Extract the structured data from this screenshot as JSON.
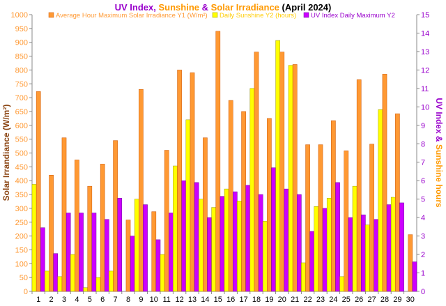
{
  "chart_data": {
    "type": "bar",
    "title_parts": [
      {
        "text": "UV Index",
        "color": "#9900cc"
      },
      {
        "text": ", ",
        "color": "#9900cc"
      },
      {
        "text": "Sunshine",
        "color": "#ff9900"
      },
      {
        "text": " & ",
        "color": "#9900cc"
      },
      {
        "text": "Solar Irradiance",
        "color": "#ff9900"
      },
      {
        "text": " (April 2024)",
        "color": "#000000"
      }
    ],
    "ylabel_left": "Solar Irrandiance (W/m²)",
    "ylabel_right_parts": [
      {
        "text": "UV Index",
        "color": "#9900cc"
      },
      {
        "text": " & ",
        "color": "#9900cc"
      },
      {
        "text": "Sunshine hours",
        "color": "#ff9900"
      }
    ],
    "ylim_left": [
      0,
      1000
    ],
    "ylim_right": [
      0,
      15
    ],
    "yticks_left": [
      "0",
      "50",
      "100",
      "150",
      "200",
      "250",
      "300",
      "350",
      "400",
      "450",
      "500",
      "550",
      "600",
      "650",
      "700",
      "750",
      "800",
      "850",
      "900",
      "950",
      "1000"
    ],
    "yticks_right": [
      "0",
      "1",
      "2",
      "3",
      "4",
      "5",
      "6",
      "7",
      "8",
      "9",
      "10",
      "11",
      "12",
      "13",
      "14",
      "15"
    ],
    "categories": [
      "1",
      "2",
      "3",
      "4",
      "5",
      "6",
      "7",
      "8",
      "9",
      "10",
      "11",
      "12",
      "13",
      "14",
      "15",
      "16",
      "17",
      "18",
      "19",
      "20",
      "21",
      "22",
      "23",
      "24",
      "25",
      "26",
      "27",
      "28",
      "29",
      "30"
    ],
    "legend_position": "top",
    "grid": false,
    "series": [
      {
        "name": "Average Hour Maximum Solar Irradiance Y1 (W/m²)",
        "axis": "left",
        "color": "#ff9933",
        "edge": "#cc5500",
        "values": [
          722,
          420,
          555,
          475,
          380,
          460,
          545,
          258,
          730,
          288,
          510,
          800,
          790,
          555,
          940,
          690,
          650,
          865,
          625,
          865,
          820,
          530,
          530,
          617,
          508,
          765,
          532,
          785,
          642,
          205
        ]
      },
      {
        "name": "Daily Sunshine Y2 (hours)",
        "axis": "right",
        "color": "#ffff00",
        "edge": "#999900",
        "values": [
          5.8,
          1.1,
          0.8,
          2.0,
          0.2,
          0.75,
          1.1,
          0.0,
          5.0,
          0.0,
          2.0,
          6.8,
          9.3,
          5.0,
          4.55,
          5.55,
          4.9,
          11.0,
          3.8,
          13.6,
          12.25,
          1.55,
          4.6,
          5.05,
          0.8,
          5.7,
          3.6,
          9.85,
          5.1,
          0.0
        ]
      },
      {
        "name": "UV Index Daily Maximum Y2",
        "axis": "right",
        "color": "#cc00ff",
        "edge": "#660099",
        "values": [
          3.45,
          2.05,
          4.25,
          4.25,
          4.25,
          3.9,
          5.05,
          3.0,
          4.7,
          2.8,
          4.25,
          6.0,
          5.9,
          4.0,
          5.15,
          5.4,
          5.75,
          5.25,
          6.7,
          5.55,
          5.25,
          3.25,
          4.5,
          5.9,
          4.0,
          4.15,
          3.9,
          4.7,
          4.8,
          1.6
        ]
      }
    ]
  }
}
